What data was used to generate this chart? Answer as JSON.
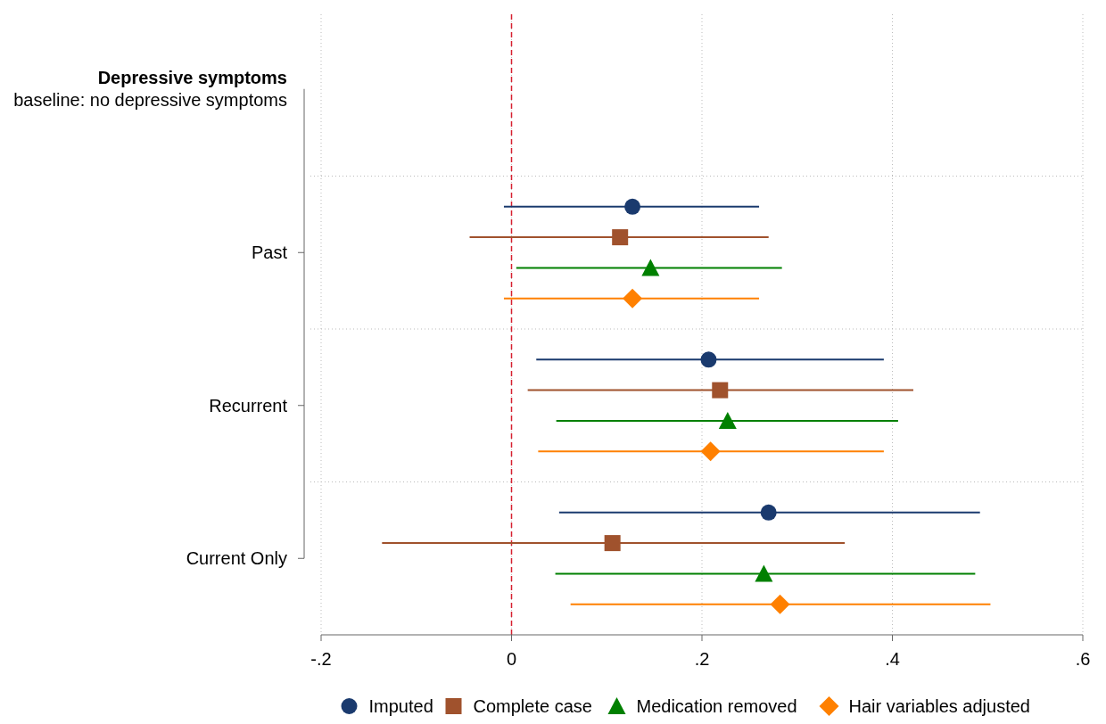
{
  "chart_data": {
    "type": "scatter",
    "orientation": "horizontal",
    "ylabel": "Depressive symptoms",
    "categories": [
      "baseline: no depressive symptoms",
      "Past",
      "Recurrent",
      "Current Only"
    ],
    "series": [
      {
        "name": "Imputed",
        "color": "#1a3a6e",
        "marker": "circle",
        "values": [
          null,
          0.127,
          0.207,
          0.27
        ],
        "errors": [
          null,
          [
            -0.008,
            0.26
          ],
          [
            0.026,
            0.391
          ],
          [
            0.05,
            0.492
          ]
        ]
      },
      {
        "name": "Complete case",
        "color": "#a0522d",
        "marker": "square",
        "values": [
          null,
          0.114,
          0.219,
          0.106
        ],
        "errors": [
          null,
          [
            -0.044,
            0.27
          ],
          [
            0.017,
            0.422
          ],
          [
            -0.136,
            0.35
          ]
        ]
      },
      {
        "name": "Medication removed",
        "color": "#008000",
        "marker": "triangle",
        "values": [
          null,
          0.146,
          0.227,
          0.265
        ],
        "errors": [
          null,
          [
            0.005,
            0.284
          ],
          [
            0.047,
            0.406
          ],
          [
            0.046,
            0.487
          ]
        ]
      },
      {
        "name": "Hair variables adjusted",
        "color": "#ff8000",
        "marker": "diamond",
        "values": [
          null,
          0.127,
          0.209,
          0.282
        ],
        "errors": [
          null,
          [
            -0.008,
            0.26
          ],
          [
            0.028,
            0.391
          ],
          [
            0.062,
            0.503
          ]
        ]
      }
    ],
    "xlim": [
      -0.2,
      0.6
    ],
    "xticks": [
      {
        "value": -0.2,
        "label": "-.2"
      },
      0,
      {
        "value": 0.2,
        "label": ".2"
      },
      {
        "value": 0.4,
        "label": ".4"
      },
      {
        "value": 0.6,
        "label": ".6"
      }
    ],
    "ref_lines": [
      {
        "axis": "x",
        "value": 0,
        "color": "#d62030",
        "line_style": "dashed"
      }
    ],
    "grid": true,
    "legend": "bottom"
  }
}
